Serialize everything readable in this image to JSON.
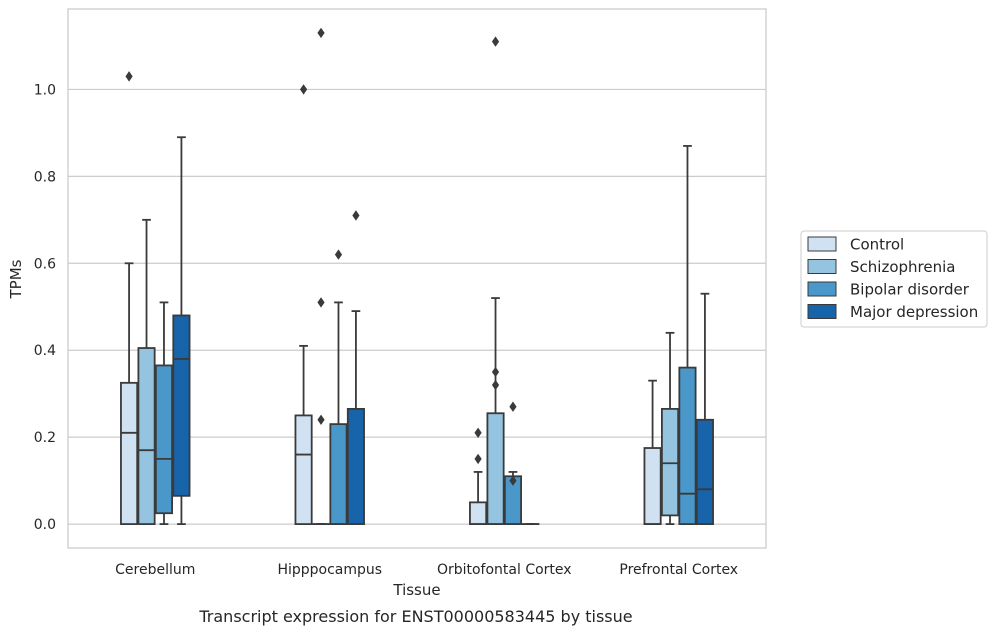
{
  "chart_data": {
    "type": "box",
    "title": "",
    "caption": "Transcript expression for ENST00000583445 by tissue",
    "xlabel": "Tissue",
    "ylabel": "TPMs",
    "ylim": [
      -0.055,
      1.185
    ],
    "yticks": [
      0.0,
      0.2,
      0.4,
      0.6,
      0.8,
      1.0
    ],
    "ytick_labels": [
      "0.0",
      "0.2",
      "0.4",
      "0.6",
      "0.8",
      "1.0"
    ],
    "grid": "horizontal",
    "legend_position": "right",
    "categories": [
      "Cerebellum",
      "Hipppocampus",
      "Orbitofontal Cortex",
      "Prefrontal Cortex"
    ],
    "series": [
      {
        "name": "Control",
        "color": "#d0e1f2",
        "boxes": [
          {
            "q1": 0.0,
            "median": 0.21,
            "q3": 0.325,
            "whisker_low": 0.0,
            "whisker_high": 0.6,
            "outliers": [
              1.03
            ]
          },
          {
            "q1": 0.0,
            "median": 0.16,
            "q3": 0.25,
            "whisker_low": 0.0,
            "whisker_high": 0.41,
            "outliers": [
              1.0
            ]
          },
          {
            "q1": 0.0,
            "median": 0.0,
            "q3": 0.05,
            "whisker_low": 0.0,
            "whisker_high": 0.12,
            "outliers": [
              0.15,
              0.21
            ]
          },
          {
            "q1": 0.0,
            "median": 0.0,
            "q3": 0.175,
            "whisker_low": 0.0,
            "whisker_high": 0.33,
            "outliers": []
          }
        ]
      },
      {
        "name": "Schizophrenia",
        "color": "#94c4df",
        "boxes": [
          {
            "q1": 0.0,
            "median": 0.17,
            "q3": 0.405,
            "whisker_low": 0.0,
            "whisker_high": 0.7,
            "outliers": []
          },
          {
            "q1": 0.0,
            "median": 0.0,
            "q3": 0.0,
            "whisker_low": 0.0,
            "whisker_high": 0.0,
            "outliers": [
              0.24,
              0.51,
              1.13
            ]
          },
          {
            "q1": 0.0,
            "median": 0.0,
            "q3": 0.255,
            "whisker_low": 0.0,
            "whisker_high": 0.52,
            "outliers": [
              0.32,
              0.35,
              1.11
            ]
          },
          {
            "q1": 0.02,
            "median": 0.14,
            "q3": 0.265,
            "whisker_low": 0.0,
            "whisker_high": 0.44,
            "outliers": []
          }
        ]
      },
      {
        "name": "Bipolar disorder",
        "color": "#4a98c9",
        "boxes": [
          {
            "q1": 0.025,
            "median": 0.15,
            "q3": 0.365,
            "whisker_low": 0.0,
            "whisker_high": 0.51,
            "outliers": []
          },
          {
            "q1": 0.0,
            "median": 0.0,
            "q3": 0.23,
            "whisker_low": 0.0,
            "whisker_high": 0.51,
            "outliers": [
              0.62
            ]
          },
          {
            "q1": 0.0,
            "median": 0.0,
            "q3": 0.11,
            "whisker_low": 0.0,
            "whisker_high": 0.12,
            "outliers": [
              0.1,
              0.27
            ]
          },
          {
            "q1": 0.0,
            "median": 0.07,
            "q3": 0.36,
            "whisker_low": 0.0,
            "whisker_high": 0.87,
            "outliers": []
          }
        ]
      },
      {
        "name": "Major depression",
        "color": "#1764ab",
        "boxes": [
          {
            "q1": 0.065,
            "median": 0.38,
            "q3": 0.48,
            "whisker_low": 0.0,
            "whisker_high": 0.89,
            "outliers": []
          },
          {
            "q1": 0.0,
            "median": 0.0,
            "q3": 0.265,
            "whisker_low": 0.0,
            "whisker_high": 0.49,
            "outliers": [
              0.71
            ]
          },
          {
            "q1": 0.0,
            "median": 0.0,
            "q3": 0.0,
            "whisker_low": 0.0,
            "whisker_high": 0.0,
            "outliers": []
          },
          {
            "q1": 0.0,
            "median": 0.08,
            "q3": 0.24,
            "whisker_low": 0.0,
            "whisker_high": 0.53,
            "outliers": []
          }
        ]
      }
    ]
  }
}
